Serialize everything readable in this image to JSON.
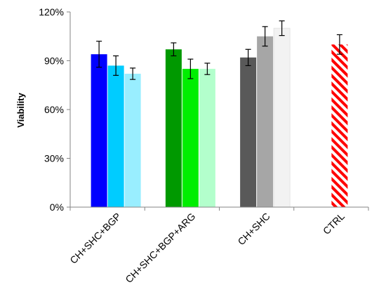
{
  "chart_data": {
    "type": "bar",
    "title": "",
    "xlabel": "",
    "ylabel": "Viability",
    "ylim": [
      0,
      1.2
    ],
    "yticks": [
      0,
      0.3,
      0.6,
      0.9,
      1.2
    ],
    "ytick_labels": [
      "0%",
      "30%",
      "60%",
      "90%",
      "120%"
    ],
    "grid": false,
    "legend": "none",
    "categories": [
      "CH+SHC+BGP",
      "CH+SHC+BGP+ARG",
      "CH+SHC",
      "CTRL"
    ],
    "groups": [
      {
        "category": "CH+SHC+BGP",
        "bars": [
          {
            "value": 0.94,
            "err": 0.08,
            "color": "#0000ff"
          },
          {
            "value": 0.87,
            "err": 0.06,
            "color": "#00ccff"
          },
          {
            "value": 0.82,
            "err": 0.035,
            "color": "#99eeff"
          }
        ]
      },
      {
        "category": "CH+SHC+BGP+ARG",
        "bars": [
          {
            "value": 0.97,
            "err": 0.04,
            "color": "#009900"
          },
          {
            "value": 0.85,
            "err": 0.06,
            "color": "#00ee00"
          },
          {
            "value": 0.85,
            "err": 0.035,
            "color": "#b3ffcc"
          }
        ]
      },
      {
        "category": "CH+SHC",
        "bars": [
          {
            "value": 0.92,
            "err": 0.05,
            "color": "#595959"
          },
          {
            "value": 1.05,
            "err": 0.06,
            "color": "#a6a6a6"
          },
          {
            "value": 1.1,
            "err": 0.045,
            "color": "#f2f2f2"
          }
        ]
      },
      {
        "category": "CTRL",
        "bars": [
          {
            "value": 1.0,
            "err": 0.06,
            "color": "#ff0000",
            "pattern": "diagonal-stripes"
          }
        ]
      }
    ]
  }
}
